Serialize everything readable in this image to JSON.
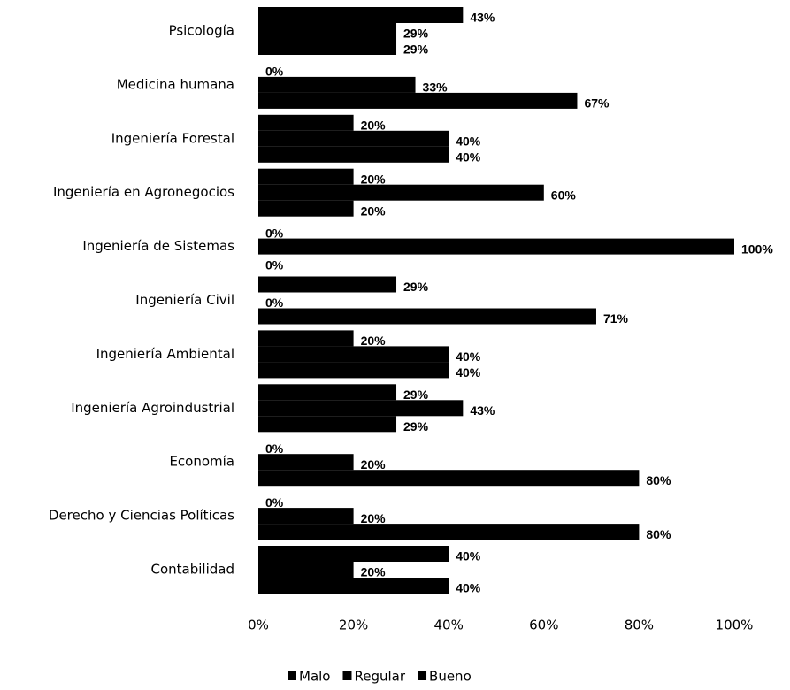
{
  "chart_data": {
    "type": "hbar",
    "categories": [
      "Psicología",
      "Medicina humana",
      "Ingeniería Forestal",
      "Ingeniería en Agronegocios",
      "Ingeniería de Sistemas",
      "Ingeniería Civil",
      "Ingeniería Ambiental",
      "Ingeniería Agroindustrial",
      "Economía",
      "Derecho y Ciencias Políticas",
      "Contabilidad"
    ],
    "series": [
      {
        "name": "Malo",
        "color": "#000000",
        "values": [
          43,
          0,
          20,
          20,
          0,
          29,
          20,
          29,
          0,
          0,
          40
        ],
        "value_labels": [
          "43%",
          "0%",
          "20%",
          "20%",
          "0%",
          "29%",
          "20%",
          "29%",
          "0%",
          "0%",
          "40%"
        ]
      },
      {
        "name": "Regular",
        "color": "#000000",
        "values": [
          29,
          33,
          40,
          60,
          100,
          0,
          40,
          43,
          20,
          20,
          20
        ],
        "value_labels": [
          "29%",
          "33%",
          "40%",
          "60%",
          "100%",
          "0%",
          "40%",
          "43%",
          "20%",
          "20%",
          "20%"
        ]
      },
      {
        "name": "Bueno",
        "color": "#000000",
        "values": [
          29,
          67,
          40,
          20,
          0,
          71,
          40,
          29,
          80,
          80,
          40
        ],
        "value_labels": [
          "29%",
          "67%",
          "40%",
          "20%",
          "0%",
          "71%",
          "40%",
          "29%",
          "80%",
          "80%",
          "40%"
        ]
      }
    ],
    "xlim": [
      0,
      100
    ],
    "xticks": [
      {
        "value": 0,
        "label": "0%"
      },
      {
        "value": 20,
        "label": "20%"
      },
      {
        "value": 40,
        "label": "40%"
      },
      {
        "value": 60,
        "label": "60%"
      },
      {
        "value": 80,
        "label": "80%"
      },
      {
        "value": 100,
        "label": "100%"
      }
    ],
    "legend": "bottom"
  }
}
